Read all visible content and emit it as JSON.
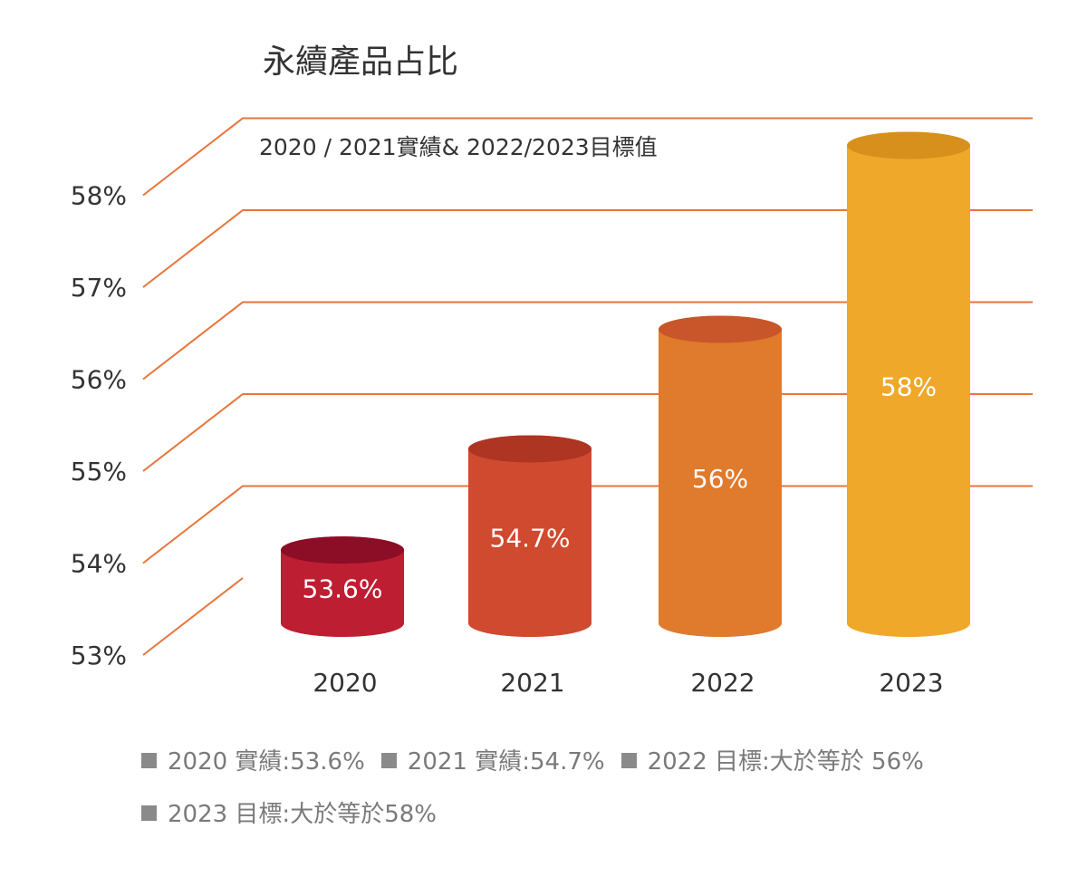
{
  "chart_data": {
    "type": "bar",
    "title": "永續產品占比",
    "subtitle": "2020 / 2021實績& 2022/2023目標值",
    "categories": [
      "2020",
      "2021",
      "2022",
      "2023"
    ],
    "values": [
      53.6,
      54.7,
      56,
      58
    ],
    "data_labels": [
      "53.6%",
      "54.7%",
      "56%",
      "58%"
    ],
    "yticks": [
      {
        "value": 53,
        "label": "53%"
      },
      {
        "value": 54,
        "label": "54%"
      },
      {
        "value": 55,
        "label": "55%"
      },
      {
        "value": 56,
        "label": "56%"
      },
      {
        "value": 57,
        "label": "57%"
      },
      {
        "value": 58,
        "label": "58%"
      }
    ],
    "ylim": [
      53,
      58.7
    ],
    "grid": true,
    "legend": [
      "2020 實績:53.6%",
      "2021 實績:54.7%",
      "2022 目標:大於等於 56%",
      "2023 目標:大於等於58%"
    ],
    "colors": {
      "bars": [
        "#be1e32",
        "#cf4a2e",
        "#e07a2c",
        "#f0a82a"
      ],
      "bar_tops": [
        "#8b0d26",
        "#ad3522",
        "#c8562a",
        "#d8901c"
      ],
      "grid": "#e8743a",
      "data_label": "#ffffff",
      "tick_text": "#333333",
      "legend_text": "#7a7a7a",
      "legend_marker": "#8a8a8a"
    }
  }
}
